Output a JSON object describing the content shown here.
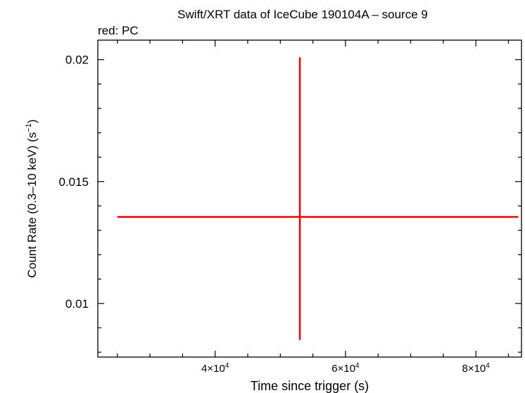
{
  "chart_data": {
    "type": "scatter",
    "title": "Swift/XRT data of IceCube 190104A – source 9",
    "subtitle": "red: PC",
    "xlabel": "Time since trigger (s)",
    "ylabel": "Count Rate (0.3–10 keV) (s",
    "ylabel_sup": "−1",
    "ylabel_close": ")",
    "xlim": [
      22000,
      87000
    ],
    "ylim": [
      0.0078,
      0.0208
    ],
    "x_ticks": [
      {
        "value": 40000,
        "mant": "4×10",
        "exp": "4"
      },
      {
        "value": 60000,
        "mant": "6×10",
        "exp": "4"
      },
      {
        "value": 80000,
        "mant": "8×10",
        "exp": "4"
      }
    ],
    "y_ticks": [
      {
        "value": 0.01,
        "label": "0.01"
      },
      {
        "value": 0.015,
        "label": "0.015"
      },
      {
        "value": 0.02,
        "label": "0.02"
      }
    ],
    "series": [
      {
        "color": "#ee0000",
        "points": [
          {
            "x": 53000,
            "x_err_low": 28000,
            "x_err_high": 33500,
            "y": 0.01355,
            "y_err_low": 0.00505,
            "y_err_high": 0.00655
          }
        ]
      }
    ],
    "grid": false
  }
}
